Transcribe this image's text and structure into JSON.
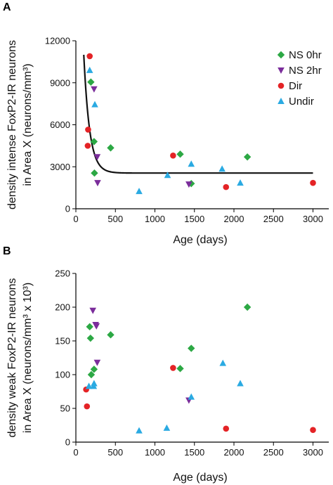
{
  "colors": {
    "NS 0hr": "#2ca844",
    "NS 2hr": "#7b2d9b",
    "Dir": "#e42326",
    "Undir": "#2aaae2"
  },
  "markers": {
    "NS 0hr": "diamond",
    "NS 2hr": "triangle-down",
    "Dir": "circle",
    "Undir": "triangle-up"
  },
  "chart_data": [
    {
      "type": "scatter",
      "panel": "A",
      "xlabel": "Age (days)",
      "ylabel_lines": [
        "density intense FoxP2-IR neurons",
        "in Area X (neurons/mm³)"
      ],
      "xlim": [
        0,
        3200
      ],
      "ylim": [
        0,
        12000
      ],
      "xticks": [
        0,
        500,
        1000,
        1500,
        2000,
        2500,
        3000
      ],
      "yticks": [
        0,
        3000,
        6000,
        9000,
        12000
      ],
      "legend": {
        "placement": "top-right",
        "entries": [
          "NS 0hr",
          "NS 2hr",
          "Dir",
          "Undir"
        ]
      },
      "series": [
        {
          "name": "NS 0hr",
          "points": [
            [
              190,
              9050
            ],
            [
              230,
              4800
            ],
            [
              235,
              2550
            ],
            [
              440,
              4350
            ],
            [
              1320,
              3900
            ],
            [
              1460,
              1800
            ],
            [
              2170,
              3700
            ]
          ]
        },
        {
          "name": "NS 2hr",
          "points": [
            [
              230,
              8550
            ],
            [
              270,
              3700
            ],
            [
              275,
              1850
            ],
            [
              1430,
              1750
            ]
          ]
        },
        {
          "name": "Dir",
          "points": [
            [
              150,
              4500
            ],
            [
              155,
              5650
            ],
            [
              175,
              10900
            ],
            [
              1230,
              3800
            ],
            [
              1900,
              1550
            ],
            [
              3000,
              1850
            ]
          ]
        },
        {
          "name": "Undir",
          "points": [
            [
              175,
              9900
            ],
            [
              240,
              7450
            ],
            [
              800,
              1250
            ],
            [
              1160,
              2400
            ],
            [
              1460,
              3200
            ],
            [
              1850,
              2850
            ],
            [
              2080,
              1850
            ]
          ]
        }
      ],
      "fit_curve": {
        "type": "exponential decay",
        "x_range": [
          100,
          3000
        ],
        "plateau": 2550,
        "peak": 11000,
        "k": 0.0135
      }
    },
    {
      "type": "scatter",
      "panel": "B",
      "xlabel": "Age (days)",
      "ylabel_lines": [
        "density weak FoxP2-IR neurons",
        "in Area X (neurons/mm³ x 10³)"
      ],
      "xlim": [
        0,
        3200
      ],
      "ylim": [
        0,
        250
      ],
      "xticks": [
        0,
        500,
        1000,
        1500,
        2000,
        2500,
        3000
      ],
      "yticks": [
        0,
        50,
        100,
        150,
        200,
        250
      ],
      "series": [
        {
          "name": "NS 0hr",
          "points": [
            [
              175,
              171
            ],
            [
              185,
              154
            ],
            [
              195,
              100
            ],
            [
              230,
              108
            ],
            [
              440,
              159
            ],
            [
              1320,
              109
            ],
            [
              1460,
              139
            ],
            [
              2170,
              200
            ]
          ]
        },
        {
          "name": "NS 2hr",
          "points": [
            [
              215,
              195
            ],
            [
              250,
              174
            ],
            [
              260,
              172
            ],
            [
              270,
              118
            ],
            [
              1430,
              62
            ]
          ]
        },
        {
          "name": "Dir",
          "points": [
            [
              130,
              78
            ],
            [
              140,
              53
            ],
            [
              1230,
              110
            ],
            [
              1900,
              20
            ],
            [
              3000,
              18
            ]
          ]
        },
        {
          "name": "Undir",
          "points": [
            [
              165,
              83
            ],
            [
              225,
              83
            ],
            [
              230,
              87
            ],
            [
              800,
              17
            ],
            [
              1150,
              21
            ],
            [
              1460,
              67
            ],
            [
              1860,
              117
            ],
            [
              2080,
              87
            ]
          ]
        }
      ]
    }
  ]
}
